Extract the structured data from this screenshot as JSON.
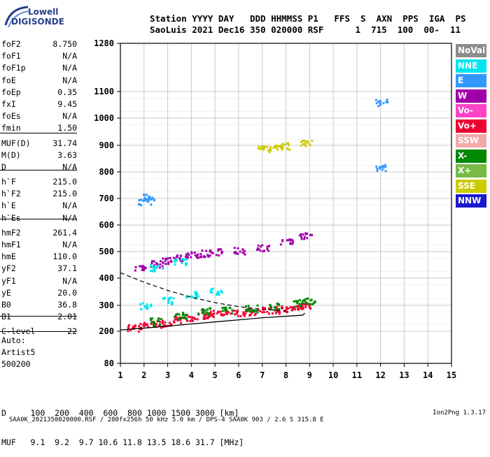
{
  "logo": {
    "line1": "Lowell",
    "line2": "DIGISONDE"
  },
  "header": {
    "row1": "Station YYYY DAY   DDD HHMMSS P1   FFS  S  AXN  PPS  IGA  PS",
    "row2": "SaoLuis 2021 Dec16 350 020000 RSF      1  715  100  00-  11"
  },
  "params_group1": [
    {
      "name": "foF2",
      "value": "8.750"
    },
    {
      "name": "foF1",
      "value": "N/A"
    },
    {
      "name": "foF1p",
      "value": "N/A"
    },
    {
      "name": "foE",
      "value": "N/A"
    },
    {
      "name": "foEp",
      "value": "0.35"
    },
    {
      "name": "fxI",
      "value": "9.45"
    },
    {
      "name": "foEs",
      "value": "N/A"
    },
    {
      "name": "fmin",
      "value": "1.50"
    }
  ],
  "params_group2": [
    {
      "name": "MUF(D)",
      "value": "31.74"
    },
    {
      "name": "M(D)",
      "value": "3.63"
    },
    {
      "name": "D",
      "value": "N/A"
    }
  ],
  "params_group3": [
    {
      "name": "h`F",
      "value": "215.0"
    },
    {
      "name": "h`F2",
      "value": "215.0"
    },
    {
      "name": "h`E",
      "value": "N/A"
    },
    {
      "name": "h`Es",
      "value": "N/A"
    }
  ],
  "params_group4": [
    {
      "name": "hmF2",
      "value": "261.4"
    },
    {
      "name": "hmF1",
      "value": "N/A"
    },
    {
      "name": "hmE",
      "value": "110.0"
    },
    {
      "name": "yF2",
      "value": "37.1"
    },
    {
      "name": "yF1",
      "value": "N/A"
    },
    {
      "name": "yE",
      "value": "20.0"
    },
    {
      "name": "B0",
      "value": "36.8"
    },
    {
      "name": "B1",
      "value": "2.01"
    }
  ],
  "clevel": {
    "name": "C-level",
    "value": "22"
  },
  "auto": {
    "line1": "Auto:",
    "line2": "Artist5",
    "line3": "500200"
  },
  "legend": [
    {
      "label": "NoVal",
      "color": "#8c8c8c"
    },
    {
      "label": "NNE",
      "color": "#00e5ee"
    },
    {
      "label": "E",
      "color": "#3399ff"
    },
    {
      "label": "W",
      "color": "#a000a8"
    },
    {
      "label": "Vo-",
      "color": "#ff44c8"
    },
    {
      "label": "Vo+",
      "color": "#ee0033"
    },
    {
      "label": "SSW",
      "color": "#f5a8a8"
    },
    {
      "label": "X-",
      "color": "#008800"
    },
    {
      "label": "X+",
      "color": "#77bb44"
    },
    {
      "label": "SSE",
      "color": "#cccc00"
    },
    {
      "label": "NNW",
      "color": "#1a1acc"
    }
  ],
  "bottom": {
    "row1": "D     100  200  400  600  800 1000 1500 3000 [km]",
    "row2": "MUF   9.1  9.2  9.7 10.6 11.8 13.5 18.6 31.7 [MHz]"
  },
  "footer": {
    "left": "SAA0K_2021350020000.RSF / 280fx256h 50 kHz 5.0 km / DPS-4 SAA0K 903 / 2.6 S 315.8 E",
    "right": "Ion2Png 1.3.17"
  },
  "chart_data": {
    "type": "scatter",
    "title": "",
    "xlabel": "",
    "ylabel": "",
    "xlim": [
      1,
      15
    ],
    "ylim": [
      80,
      1280
    ],
    "y_scale": "nonlinear",
    "x_ticks": [
      1,
      2,
      3,
      4,
      5,
      6,
      7,
      8,
      9,
      10,
      11,
      12,
      13,
      14,
      15
    ],
    "y_ticks": [
      80,
      200,
      300,
      400,
      500,
      600,
      700,
      800,
      900,
      1000,
      1100,
      1280
    ],
    "grid": true,
    "legend_position": "right",
    "series": [
      {
        "name": "Vo+",
        "color": "#ee0033",
        "points": [
          [
            1.5,
            215
          ],
          [
            2.0,
            225
          ],
          [
            2.5,
            230
          ],
          [
            3.0,
            235
          ],
          [
            3.5,
            245
          ],
          [
            4.0,
            255
          ],
          [
            4.5,
            265
          ],
          [
            5.0,
            270
          ],
          [
            5.5,
            272
          ],
          [
            6.0,
            275
          ],
          [
            6.5,
            278
          ],
          [
            7.0,
            282
          ],
          [
            7.5,
            285
          ],
          [
            8.0,
            290
          ],
          [
            8.5,
            295
          ],
          [
            8.75,
            300
          ]
        ]
      },
      {
        "name": "X-",
        "color": "#008800",
        "points": [
          [
            2.5,
            240
          ],
          [
            3.5,
            262
          ],
          [
            4.5,
            280
          ],
          [
            5.5,
            285
          ],
          [
            6.5,
            290
          ],
          [
            7.5,
            298
          ],
          [
            8.5,
            310
          ],
          [
            9.0,
            320
          ]
        ]
      },
      {
        "name": "W",
        "color": "#a000a8",
        "points": [
          [
            1.8,
            440
          ],
          [
            2.5,
            455
          ],
          [
            3.0,
            470
          ],
          [
            3.5,
            480
          ],
          [
            4.0,
            490
          ],
          [
            4.5,
            495
          ],
          [
            5.0,
            500
          ],
          [
            6.0,
            505
          ],
          [
            7.0,
            515
          ],
          [
            8.0,
            540
          ],
          [
            8.8,
            560
          ]
        ]
      },
      {
        "name": "NNE",
        "color": "#00e5ee",
        "points": [
          [
            2.0,
            300
          ],
          [
            3.0,
            320
          ],
          [
            4.0,
            340
          ],
          [
            5.0,
            355
          ],
          [
            2.5,
            440
          ],
          [
            3.5,
            465
          ]
        ]
      },
      {
        "name": "E",
        "color": "#3399ff",
        "points": [
          [
            2.0,
            690
          ],
          [
            2.2,
            705
          ],
          [
            12.0,
            1060
          ],
          [
            12.0,
            820
          ]
        ]
      },
      {
        "name": "SSE",
        "color": "#cccc00",
        "points": [
          [
            7.0,
            890
          ],
          [
            7.5,
            895
          ],
          [
            8.0,
            900
          ],
          [
            8.8,
            908
          ]
        ]
      }
    ],
    "profile_curve": [
      [
        1,
        205
      ],
      [
        2,
        212
      ],
      [
        3,
        220
      ],
      [
        4,
        228
      ],
      [
        5,
        236
      ],
      [
        6,
        244
      ],
      [
        7,
        252
      ],
      [
        8,
        258
      ],
      [
        8.7,
        262
      ],
      [
        8.8,
        270
      ]
    ],
    "dashed_curve": [
      [
        1,
        420
      ],
      [
        2,
        385
      ],
      [
        3,
        355
      ],
      [
        4,
        330
      ],
      [
        5,
        310
      ],
      [
        6,
        295
      ],
      [
        7,
        285
      ],
      [
        8,
        278
      ]
    ]
  }
}
